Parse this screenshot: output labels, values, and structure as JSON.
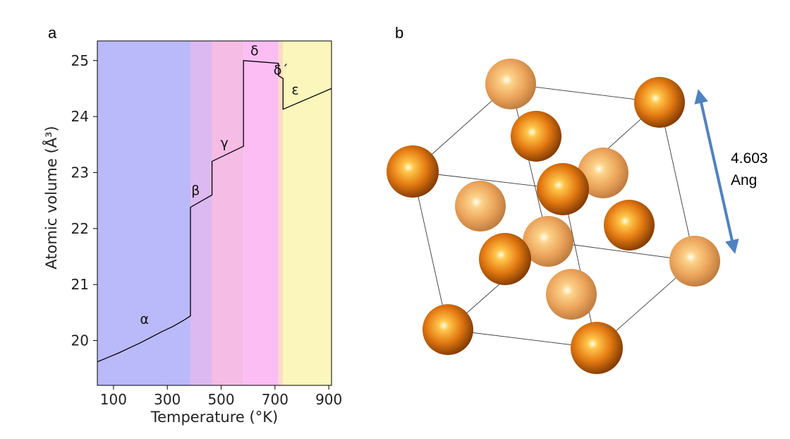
{
  "panels": {
    "a": "a",
    "b": "b"
  },
  "chart_data": {
    "type": "line",
    "xlabel": "Temperature (°K)",
    "ylabel": "Atomic volume (Å³)",
    "xlim": [
      40,
      910
    ],
    "ylim": [
      19.2,
      25.35
    ],
    "xticks": [
      100,
      300,
      500,
      700,
      900
    ],
    "yticks": [
      20,
      21,
      22,
      23,
      24,
      25
    ],
    "grid": false,
    "phases": [
      {
        "label": "α",
        "x0": 40,
        "x1": 386,
        "color": "#babafa",
        "label_at": [
          215,
          20.3
        ]
      },
      {
        "label": "β",
        "x0": 386,
        "x1": 466,
        "color": "#dcb9f0",
        "label_at": [
          405,
          22.6
        ]
      },
      {
        "label": "γ",
        "x0": 466,
        "x1": 583,
        "color": "#f5bce5",
        "label_at": [
          512,
          23.45
        ]
      },
      {
        "label": "δ",
        "x0": 583,
        "x1": 713,
        "color": "#fcbdf5",
        "label_at": [
          624,
          25.1
        ]
      },
      {
        "label": "δ´",
        "x0": 713,
        "x1": 730,
        "color": "#fbdcc5",
        "label_at": [
          722,
          24.75
        ]
      },
      {
        "label": "ε",
        "x0": 730,
        "x1": 910,
        "color": "#fbf7bc",
        "label_at": [
          775,
          24.4
        ]
      }
    ],
    "series": [
      {
        "values": [
          [
            40,
            19.62
          ],
          [
            80,
            19.7
          ],
          [
            120,
            19.78
          ],
          [
            160,
            19.87
          ],
          [
            200,
            19.96
          ],
          [
            240,
            20.06
          ],
          [
            280,
            20.16
          ],
          [
            320,
            20.25
          ],
          [
            360,
            20.36
          ],
          [
            386,
            20.44
          ],
          [
            386,
            22.38
          ],
          [
            466,
            22.6
          ],
          [
            466,
            23.2
          ],
          [
            583,
            23.47
          ],
          [
            583,
            25.0
          ],
          [
            713,
            24.95
          ],
          [
            713,
            24.73
          ],
          [
            730,
            24.68
          ],
          [
            730,
            24.13
          ],
          [
            910,
            24.5
          ]
        ]
      }
    ]
  },
  "crystal": {
    "lattice_constant_label": "4.603",
    "unit_label": "Ang",
    "atom_color": "#e07a12",
    "edge_color": "#333333",
    "arrow_color": "#4f82c0"
  }
}
